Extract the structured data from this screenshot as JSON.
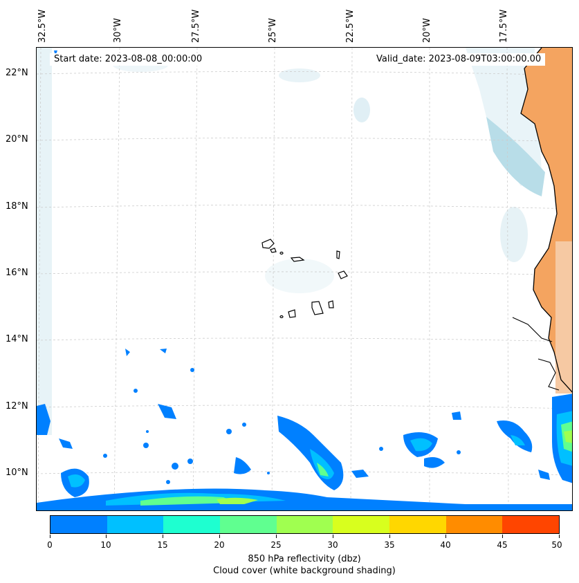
{
  "map": {
    "longitude_labels": [
      "32.5°W",
      "30°W",
      "27.5°W",
      "25°W",
      "22.5°W",
      "20°W",
      "17.5°W"
    ],
    "latitude_labels": [
      "22°N",
      "20°N",
      "18°N",
      "16°N",
      "14°N",
      "12°N",
      "10°N"
    ],
    "start_date": "Start date: 2023-08-08_00:00:00",
    "valid_date": "Valid_date: 2023-08-09T03:00:00.00"
  },
  "colorbar": {
    "ticks": [
      "0",
      "10",
      "15",
      "20",
      "25",
      "30",
      "35",
      "40",
      "45",
      "50"
    ],
    "colors": [
      "#0080ff",
      "#00c0ff",
      "#1effd0",
      "#60ff90",
      "#a0ff50",
      "#d8ff1e",
      "#ffd700",
      "#ff8c00",
      "#ff4500"
    ],
    "title_line1": "850 hPa reflectivity (dbz)",
    "title_line2": "Cloud cover (white background shading)"
  },
  "colors": {
    "land": "#f4a460",
    "cloud": "#d6ecf3",
    "coastline": "#000000",
    "grid": "#cccccc"
  }
}
